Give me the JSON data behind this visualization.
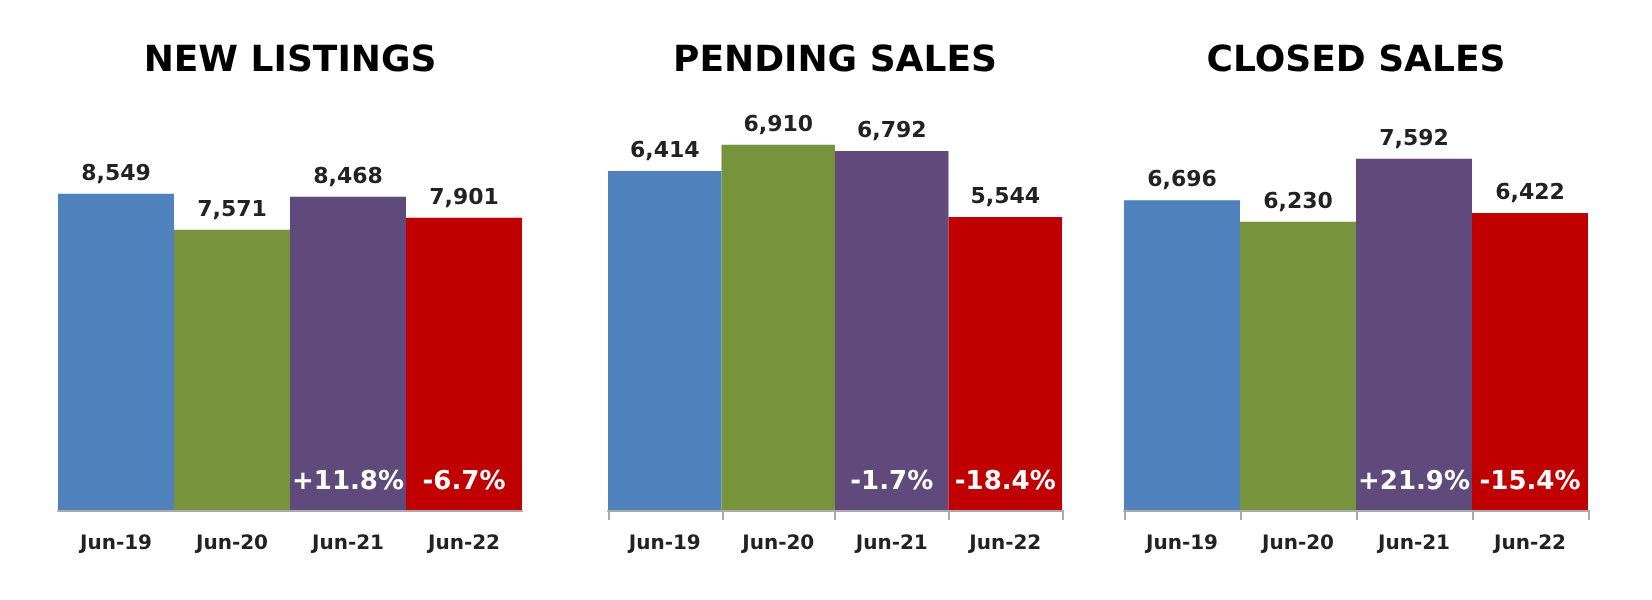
{
  "chart_data": [
    {
      "type": "bar",
      "title": "NEW LISTINGS",
      "categories": [
        "Jun-19",
        "Jun-20",
        "Jun-21",
        "Jun-22"
      ],
      "values": [
        8549,
        7571,
        8468,
        7901
      ],
      "value_labels": [
        "8,549",
        "7,571",
        "8,468",
        "7,901"
      ],
      "colors": [
        "#4f81bd",
        "#77933c",
        "#604a7b",
        "#c00000"
      ],
      "tick_labels": "x",
      "annotations": [
        "+11.8%",
        "-6.7%"
      ]
    },
    {
      "type": "bar",
      "title": "PENDING SALES",
      "categories": [
        "Jun-19",
        "Jun-20",
        "Jun-21",
        "Jun-22"
      ],
      "values": [
        6414,
        6910,
        6792,
        5544
      ],
      "value_labels": [
        "6,414",
        "6,910",
        "6,792",
        "5,544"
      ],
      "colors": [
        "#4f81bd",
        "#77933c",
        "#604a7b",
        "#c00000"
      ],
      "tick_labels": "x",
      "annotations": [
        "-1.7%",
        "-18.4%"
      ]
    },
    {
      "type": "bar",
      "title": "CLOSED SALES",
      "categories": [
        "Jun-19",
        "Jun-20",
        "Jun-21",
        "Jun-22"
      ],
      "values": [
        6696,
        6230,
        7592,
        6422
      ],
      "value_labels": [
        "6,696",
        "6,230",
        "7,592",
        "6,422"
      ],
      "colors": [
        "#4f81bd",
        "#77933c",
        "#604a7b",
        "#c00000"
      ],
      "tick_labels": "x",
      "annotations": [
        "+21.9%",
        "-15.4%"
      ]
    }
  ]
}
